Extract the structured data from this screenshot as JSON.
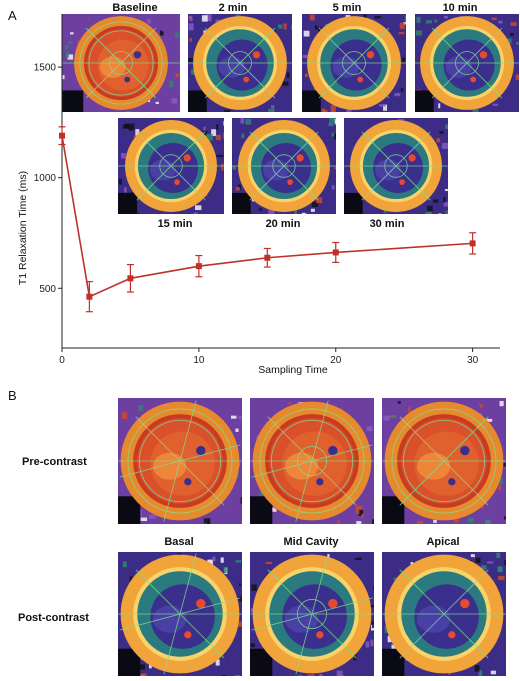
{
  "panel_a": {
    "letter": "A",
    "top_labels": [
      "Baseline",
      "2 min",
      "5 min",
      "10 min"
    ],
    "bottom_labels": [
      "15 min",
      "20 min",
      "30 min"
    ],
    "colors": {
      "line": "#c0302b"
    },
    "chart_data": {
      "type": "line",
      "x": [
        0,
        2,
        5,
        10,
        15,
        20,
        30
      ],
      "values": [
        1190,
        462,
        545,
        600,
        638,
        662,
        703
      ],
      "errors": [
        40,
        68,
        62,
        48,
        42,
        45,
        48
      ],
      "xlabel": "Sampling Time",
      "ylabel": "T1 Relaxation Time (ms)",
      "xticks": [
        0,
        10,
        20,
        30
      ],
      "yticks": [
        500,
        1000,
        1500
      ],
      "xlim": [
        0,
        32
      ],
      "ylim": [
        230,
        1740
      ],
      "grid": false
    }
  },
  "panel_b": {
    "letter": "B",
    "row_labels": [
      "Pre-contrast",
      "Post-contrast"
    ],
    "column_labels": [
      "Basal",
      "Mid Cavity",
      "Apical"
    ]
  }
}
